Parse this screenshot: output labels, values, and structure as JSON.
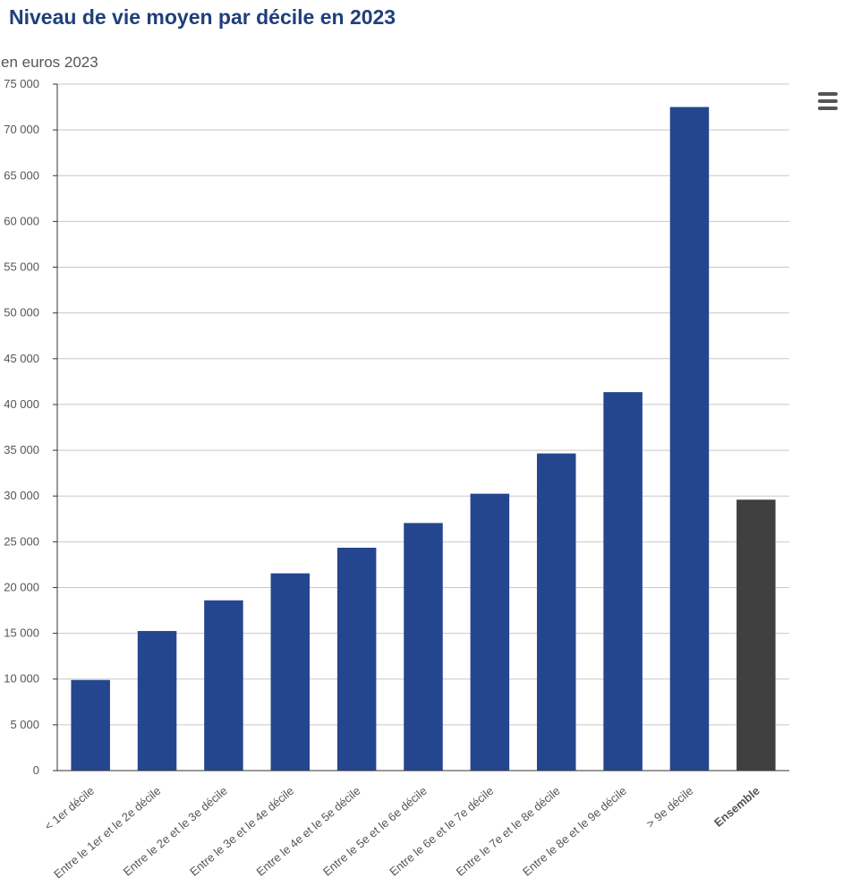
{
  "chart_data": {
    "type": "bar",
    "title": "Niveau de vie moyen par décile en 2023",
    "subtitle": "en euros 2023",
    "xlabel": "",
    "ylabel": "",
    "ylim": [
      0,
      75000
    ],
    "yticks": [
      0,
      5000,
      10000,
      15000,
      20000,
      25000,
      30000,
      35000,
      40000,
      45000,
      50000,
      55000,
      60000,
      65000,
      70000,
      75000
    ],
    "ytick_labels": [
      "0",
      "5 000",
      "10 000",
      "15 000",
      "20 000",
      "25 000",
      "30 000",
      "35 000",
      "40 000",
      "45 000",
      "50 000",
      "55 000",
      "60 000",
      "65 000",
      "70 000",
      "75 000"
    ],
    "grid": true,
    "legend": "none",
    "categories": [
      "< 1er décile",
      "Entre le 1er et le 2e décile",
      "Entre le 2e et le 3e décile",
      "Entre le 3e et le 4e décile",
      "Entre le 4e et le 5e décile",
      "Entre le 5e et le 6e décile",
      "Entre le 6e et le 7e décile",
      "Entre le 7e et le 8e décile",
      "Entre le 8e et le 9e décile",
      "> 9e décile",
      "Ensemble"
    ],
    "values": [
      9900,
      15250,
      18600,
      21550,
      24350,
      27050,
      30250,
      34650,
      41350,
      72500,
      29600
    ],
    "highlight": [
      false,
      false,
      false,
      false,
      false,
      false,
      false,
      false,
      false,
      false,
      true
    ],
    "colors": {
      "bar": "#24468f",
      "highlight_bar": "#404040",
      "grid": "#c8c8c8",
      "axis": "#333333"
    }
  },
  "menu": {
    "icon": "hamburger-menu-icon"
  }
}
